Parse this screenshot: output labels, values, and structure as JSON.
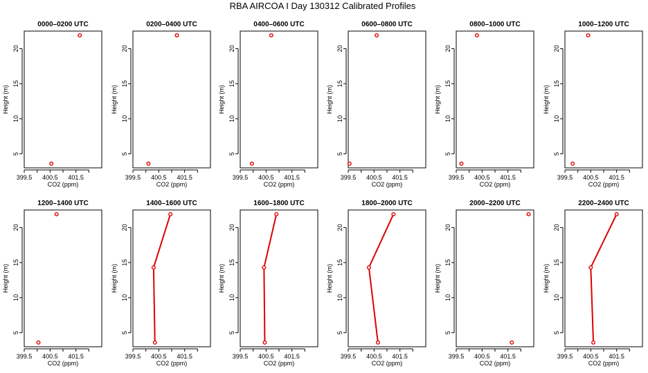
{
  "figure": {
    "title": "RBA AIRCOA I  Day 130312  Calibrated Profiles",
    "series_color": "#dd0000"
  },
  "chart_data": [
    {
      "type": "line",
      "title": "0000–0200 UTC",
      "xlabel": "CO2 (ppm)",
      "ylabel": "Height (m)",
      "xlim": [
        399.5,
        402.5
      ],
      "ylim": [
        3,
        22.5
      ],
      "xticks": [
        399.5,
        400.0,
        400.5,
        401.0,
        401.5,
        402.0
      ],
      "xtick_labels": [
        "399.5",
        "",
        "400.5",
        "",
        "401.5",
        ""
      ],
      "yticks": [
        5,
        10,
        15,
        20
      ],
      "ytick_labels": [
        "5",
        "10",
        "15",
        "20"
      ],
      "points": [
        {
          "x": 400.55,
          "y": 3.6
        },
        {
          "x": 401.65,
          "y": 21.9
        }
      ],
      "connect": [
        false
      ]
    },
    {
      "type": "line",
      "title": "0200–0400 UTC",
      "xlabel": "CO2 (ppm)",
      "ylabel": "Height (m)",
      "xlim": [
        399.5,
        402.5
      ],
      "ylim": [
        3,
        22.5
      ],
      "xticks": [
        399.5,
        400.0,
        400.5,
        401.0,
        401.5,
        402.0
      ],
      "xtick_labels": [
        "399.5",
        "",
        "400.5",
        "",
        "401.5",
        ""
      ],
      "yticks": [
        5,
        10,
        15,
        20
      ],
      "ytick_labels": [
        "5",
        "10",
        "15",
        "20"
      ],
      "points": [
        {
          "x": 400.1,
          "y": 3.6
        },
        {
          "x": 401.2,
          "y": 21.9
        }
      ],
      "connect": [
        false
      ]
    },
    {
      "type": "line",
      "title": "0400–0600 UTC",
      "xlabel": "CO2 (ppm)",
      "ylabel": "Height (m)",
      "xlim": [
        399.5,
        402.5
      ],
      "ylim": [
        3,
        22.5
      ],
      "xticks": [
        399.5,
        400.0,
        400.5,
        401.0,
        401.5,
        402.0
      ],
      "xtick_labels": [
        "399.5",
        "",
        "400.5",
        "",
        "401.5",
        ""
      ],
      "yticks": [
        5,
        10,
        15,
        20
      ],
      "ytick_labels": [
        "5",
        "10",
        "15",
        "20"
      ],
      "points": [
        {
          "x": 399.95,
          "y": 3.6
        },
        {
          "x": 400.7,
          "y": 21.9
        }
      ],
      "connect": [
        false
      ]
    },
    {
      "type": "line",
      "title": "0600–0800 UTC",
      "xlabel": "CO2 (ppm)",
      "ylabel": "Height (m)",
      "xlim": [
        399.5,
        402.5
      ],
      "ylim": [
        3,
        22.5
      ],
      "xticks": [
        399.5,
        400.0,
        400.5,
        401.0,
        401.5,
        402.0
      ],
      "xtick_labels": [
        "399.5",
        "",
        "400.5",
        "",
        "401.5",
        ""
      ],
      "yticks": [
        5,
        10,
        15,
        20
      ],
      "ytick_labels": [
        "5",
        "10",
        "15",
        "20"
      ],
      "points": [
        {
          "x": 399.55,
          "y": 3.6
        },
        {
          "x": 400.6,
          "y": 21.9
        }
      ],
      "connect": [
        false
      ]
    },
    {
      "type": "line",
      "title": "0800–1000 UTC",
      "xlabel": "CO2 (ppm)",
      "ylabel": "Height (m)",
      "xlim": [
        399.5,
        402.5
      ],
      "ylim": [
        3,
        22.5
      ],
      "xticks": [
        399.5,
        400.0,
        400.5,
        401.0,
        401.5,
        402.0
      ],
      "xtick_labels": [
        "399.5",
        "",
        "400.5",
        "",
        "401.5",
        ""
      ],
      "yticks": [
        5,
        10,
        15,
        20
      ],
      "ytick_labels": [
        "5",
        "10",
        "15",
        "20"
      ],
      "points": [
        {
          "x": 399.7,
          "y": 3.6
        },
        {
          "x": 400.3,
          "y": 21.9
        }
      ],
      "connect": [
        false
      ]
    },
    {
      "type": "line",
      "title": "1000–1200 UTC",
      "xlabel": "CO2 (ppm)",
      "ylabel": "Height (m)",
      "xlim": [
        399.5,
        402.5
      ],
      "ylim": [
        3,
        22.5
      ],
      "xticks": [
        399.5,
        400.0,
        400.5,
        401.0,
        401.5,
        402.0
      ],
      "xtick_labels": [
        "399.5",
        "",
        "400.5",
        "",
        "401.5",
        ""
      ],
      "yticks": [
        5,
        10,
        15,
        20
      ],
      "ytick_labels": [
        "5",
        "10",
        "15",
        "20"
      ],
      "points": [
        {
          "x": 399.8,
          "y": 3.6
        },
        {
          "x": 400.4,
          "y": 21.9
        }
      ],
      "connect": [
        false
      ]
    },
    {
      "type": "line",
      "title": "1200–1400 UTC",
      "xlabel": "CO2 (ppm)",
      "ylabel": "Height (m)",
      "xlim": [
        399.5,
        402.5
      ],
      "ylim": [
        3,
        22.5
      ],
      "xticks": [
        399.5,
        400.0,
        400.5,
        401.0,
        401.5,
        402.0
      ],
      "xtick_labels": [
        "399.5",
        "",
        "400.5",
        "",
        "401.5",
        ""
      ],
      "yticks": [
        5,
        10,
        15,
        20
      ],
      "ytick_labels": [
        "5",
        "10",
        "15",
        "20"
      ],
      "points": [
        {
          "x": 400.05,
          "y": 3.6
        },
        {
          "x": 400.75,
          "y": 21.9
        }
      ],
      "connect": [
        false
      ]
    },
    {
      "type": "line",
      "title": "1400–1600 UTC",
      "xlabel": "CO2 (ppm)",
      "ylabel": "Height (m)",
      "xlim": [
        399.5,
        402.5
      ],
      "ylim": [
        3,
        22.5
      ],
      "xticks": [
        399.5,
        400.0,
        400.5,
        401.0,
        401.5,
        402.0
      ],
      "xtick_labels": [
        "399.5",
        "",
        "400.5",
        "",
        "401.5",
        ""
      ],
      "yticks": [
        5,
        10,
        15,
        20
      ],
      "ytick_labels": [
        "5",
        "10",
        "15",
        "20"
      ],
      "points": [
        {
          "x": 400.35,
          "y": 3.6
        },
        {
          "x": 400.3,
          "y": 14.3
        },
        {
          "x": 400.95,
          "y": 21.9
        }
      ],
      "connect": [
        true,
        true
      ]
    },
    {
      "type": "line",
      "title": "1600–1800 UTC",
      "xlabel": "CO2 (ppm)",
      "ylabel": "Height (m)",
      "xlim": [
        399.5,
        402.5
      ],
      "ylim": [
        3,
        22.5
      ],
      "xticks": [
        399.5,
        400.0,
        400.5,
        401.0,
        401.5,
        402.0
      ],
      "xtick_labels": [
        "399.5",
        "",
        "400.5",
        "",
        "401.5",
        ""
      ],
      "yticks": [
        5,
        10,
        15,
        20
      ],
      "ytick_labels": [
        "5",
        "10",
        "15",
        "20"
      ],
      "points": [
        {
          "x": 400.45,
          "y": 3.6
        },
        {
          "x": 400.42,
          "y": 14.3
        },
        {
          "x": 400.9,
          "y": 21.9
        }
      ],
      "connect": [
        true,
        true
      ]
    },
    {
      "type": "line",
      "title": "1800–2000 UTC",
      "xlabel": "CO2 (ppm)",
      "ylabel": "Height (m)",
      "xlim": [
        399.5,
        402.5
      ],
      "ylim": [
        3,
        22.5
      ],
      "xticks": [
        399.5,
        400.0,
        400.5,
        401.0,
        401.5,
        402.0
      ],
      "xtick_labels": [
        "399.5",
        "",
        "400.5",
        "",
        "401.5",
        ""
      ],
      "yticks": [
        5,
        10,
        15,
        20
      ],
      "ytick_labels": [
        "5",
        "10",
        "15",
        "20"
      ],
      "points": [
        {
          "x": 400.65,
          "y": 3.6
        },
        {
          "x": 400.3,
          "y": 14.3
        },
        {
          "x": 401.25,
          "y": 21.9
        }
      ],
      "connect": [
        true,
        true
      ]
    },
    {
      "type": "line",
      "title": "2000–2200 UTC",
      "xlabel": "CO2 (ppm)",
      "ylabel": "Height (m)",
      "xlim": [
        399.5,
        402.5
      ],
      "ylim": [
        3,
        22.5
      ],
      "xticks": [
        399.5,
        400.0,
        400.5,
        401.0,
        401.5,
        402.0
      ],
      "xtick_labels": [
        "399.5",
        "",
        "400.5",
        "",
        "401.5",
        ""
      ],
      "yticks": [
        5,
        10,
        15,
        20
      ],
      "ytick_labels": [
        "5",
        "10",
        "15",
        "20"
      ],
      "points": [
        {
          "x": 401.65,
          "y": 3.6
        },
        {
          "x": 402.3,
          "y": 21.9
        }
      ],
      "connect": [
        false
      ]
    },
    {
      "type": "line",
      "title": "2200–2400 UTC",
      "xlabel": "CO2 (ppm)",
      "ylabel": "Height (m)",
      "xlim": [
        399.5,
        402.5
      ],
      "ylim": [
        3,
        22.5
      ],
      "xticks": [
        399.5,
        400.0,
        400.5,
        401.0,
        401.5,
        402.0
      ],
      "xtick_labels": [
        "399.5",
        "",
        "400.5",
        "",
        "401.5",
        ""
      ],
      "yticks": [
        5,
        10,
        15,
        20
      ],
      "ytick_labels": [
        "5",
        "10",
        "15",
        "20"
      ],
      "points": [
        {
          "x": 400.6,
          "y": 3.6
        },
        {
          "x": 400.5,
          "y": 14.3
        },
        {
          "x": 401.5,
          "y": 21.9
        }
      ],
      "connect": [
        true,
        true
      ]
    }
  ]
}
